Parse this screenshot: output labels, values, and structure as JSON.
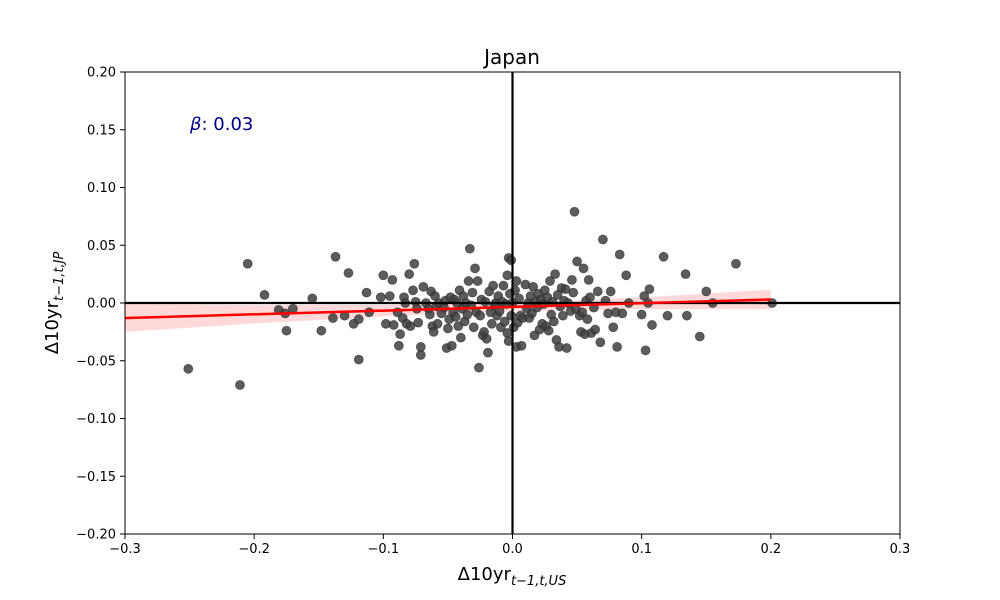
{
  "chart_data": {
    "type": "scatter",
    "title": "Japan",
    "xlabel": {
      "main": "Δ10yr",
      "sub": "t−1,t,US"
    },
    "ylabel": {
      "main": "Δ10yr",
      "sub": "t−1,t,JP"
    },
    "xlim": [
      -0.3,
      0.3
    ],
    "ylim": [
      -0.2,
      0.2
    ],
    "xticks": [
      -0.3,
      -0.2,
      -0.1,
      0.0,
      0.1,
      0.2,
      0.3
    ],
    "xtick_labels": [
      "−0.3",
      "−0.2",
      "−0.1",
      "0.0",
      "0.1",
      "0.2",
      "0.3"
    ],
    "yticks": [
      -0.2,
      -0.15,
      -0.1,
      -0.05,
      0.0,
      0.05,
      0.1,
      0.15,
      0.2
    ],
    "ytick_labels": [
      "−0.20",
      "−0.15",
      "−0.10",
      "−0.05",
      "0.00",
      "0.05",
      "0.10",
      "0.15",
      "0.20"
    ],
    "grid": false,
    "annotation": {
      "symbol": "β",
      "text": ": 0.03",
      "x": -0.25,
      "y": 0.155,
      "color": "#00008b"
    },
    "reference_lines": {
      "x": 0,
      "y": 0,
      "color": "#000000"
    },
    "regression": {
      "x": [
        -0.3,
        0.2
      ],
      "y": [
        -0.013,
        0.003
      ],
      "color": "#ff0000",
      "band_color": "#ffcccc",
      "band_half_width": [
        0.012,
        0.008,
        0.005,
        0.0035,
        0.005,
        0.0085
      ]
    },
    "points_color": "#404040",
    "points": [
      [
        -0.251,
        -0.057
      ],
      [
        -0.211,
        -0.071
      ],
      [
        -0.205,
        0.034
      ],
      [
        -0.192,
        0.007
      ],
      [
        -0.181,
        -0.006
      ],
      [
        -0.176,
        -0.009
      ],
      [
        -0.175,
        -0.024
      ],
      [
        -0.17,
        -0.005
      ],
      [
        -0.155,
        0.004
      ],
      [
        -0.148,
        -0.024
      ],
      [
        -0.139,
        -0.013
      ],
      [
        -0.137,
        0.04
      ],
      [
        -0.13,
        -0.011
      ],
      [
        -0.127,
        0.026
      ],
      [
        -0.123,
        -0.018
      ],
      [
        -0.119,
        -0.049
      ],
      [
        -0.119,
        -0.014
      ],
      [
        -0.113,
        0.009
      ],
      [
        -0.111,
        -0.008
      ],
      [
        -0.102,
        0.005
      ],
      [
        -0.1,
        0.024
      ],
      [
        -0.098,
        -0.018
      ],
      [
        -0.095,
        0.006
      ],
      [
        -0.093,
        0.02
      ],
      [
        -0.092,
        -0.019
      ],
      [
        -0.089,
        -0.008
      ],
      [
        -0.088,
        -0.037
      ],
      [
        -0.087,
        -0.027
      ],
      [
        -0.085,
        -0.013
      ],
      [
        -0.084,
        0.005
      ],
      [
        -0.083,
        0.0
      ],
      [
        -0.082,
        -0.018
      ],
      [
        -0.08,
        0.025
      ],
      [
        -0.079,
        -0.02
      ],
      [
        -0.077,
        0.011
      ],
      [
        -0.076,
        0.034
      ],
      [
        -0.075,
        0.001
      ],
      [
        -0.074,
        -0.005
      ],
      [
        -0.073,
        -0.017
      ],
      [
        -0.071,
        -0.045
      ],
      [
        -0.071,
        -0.038
      ],
      [
        -0.069,
        0.014
      ],
      [
        -0.067,
        0.0
      ],
      [
        -0.065,
        -0.005
      ],
      [
        -0.064,
        -0.01
      ],
      [
        -0.063,
        0.01
      ],
      [
        -0.062,
        -0.02
      ],
      [
        -0.061,
        -0.025
      ],
      [
        -0.06,
        0.006
      ],
      [
        -0.059,
        -0.003
      ],
      [
        -0.058,
        -0.018
      ],
      [
        -0.057,
        0.0
      ],
      [
        -0.055,
        -0.009
      ],
      [
        -0.053,
        -0.004
      ],
      [
        -0.052,
        0.002
      ],
      [
        -0.051,
        -0.039
      ],
      [
        -0.05,
        -0.022
      ],
      [
        -0.049,
        -0.014
      ],
      [
        -0.048,
        0.005
      ],
      [
        -0.047,
        -0.037
      ],
      [
        -0.046,
        -0.008
      ],
      [
        -0.045,
        0.003
      ],
      [
        -0.044,
        -0.012
      ],
      [
        -0.043,
        0.0
      ],
      [
        -0.042,
        -0.02
      ],
      [
        -0.041,
        0.011
      ],
      [
        -0.04,
        -0.03
      ],
      [
        -0.039,
        -0.005
      ],
      [
        -0.038,
        0.006
      ],
      [
        -0.037,
        -0.016
      ],
      [
        -0.036,
        0.0
      ],
      [
        -0.035,
        -0.01
      ],
      [
        -0.034,
        0.019
      ],
      [
        -0.033,
        0.047
      ],
      [
        -0.032,
        -0.002
      ],
      [
        -0.031,
        0.009
      ],
      [
        -0.03,
        -0.021
      ],
      [
        -0.029,
        0.03
      ],
      [
        -0.028,
        -0.008
      ],
      [
        -0.027,
        0.019
      ],
      [
        -0.026,
        -0.056
      ],
      [
        -0.025,
        -0.011
      ],
      [
        -0.024,
        0.003
      ],
      [
        -0.023,
        -0.028
      ],
      [
        -0.022,
        -0.025
      ],
      [
        -0.021,
        0.001
      ],
      [
        -0.02,
        -0.031
      ],
      [
        -0.019,
        -0.043
      ],
      [
        -0.018,
        0.01
      ],
      [
        -0.017,
        -0.008
      ],
      [
        -0.016,
        -0.018
      ],
      [
        -0.015,
        0.015
      ],
      [
        -0.014,
        -0.002
      ],
      [
        -0.013,
        0.0
      ],
      [
        -0.012,
        -0.011
      ],
      [
        -0.011,
        0.006
      ],
      [
        -0.01,
        -0.007
      ],
      [
        -0.009,
        -0.021
      ],
      [
        -0.008,
        0.001
      ],
      [
        -0.007,
        0.015
      ],
      [
        -0.006,
        -0.016
      ],
      [
        -0.005,
        -0.001
      ],
      [
        -0.004,
        0.024
      ],
      [
        -0.004,
        -0.026
      ],
      [
        -0.003,
        0.039
      ],
      [
        -0.003,
        -0.033
      ],
      [
        -0.002,
        0.008
      ],
      [
        -0.001,
        0.037
      ],
      [
        -0.001,
        -0.011
      ],
      [
        0.0,
        0.0
      ],
      [
        0.001,
        -0.021
      ],
      [
        0.002,
        0.011
      ],
      [
        0.003,
        -0.038
      ],
      [
        0.003,
        0.019
      ],
      [
        0.004,
        -0.017
      ],
      [
        0.005,
        0.004
      ],
      [
        0.006,
        -0.011
      ],
      [
        0.007,
        -0.037
      ],
      [
        0.008,
        -0.013
      ],
      [
        0.01,
        0.016
      ],
      [
        0.011,
        -0.005
      ],
      [
        0.012,
        0.0
      ],
      [
        0.013,
        -0.013
      ],
      [
        0.014,
        0.006
      ],
      [
        0.015,
        -0.009
      ],
      [
        0.016,
        0.014
      ],
      [
        0.017,
        -0.028
      ],
      [
        0.018,
        0.001
      ],
      [
        0.019,
        -0.004
      ],
      [
        0.02,
        0.008
      ],
      [
        0.021,
        -0.023
      ],
      [
        0.022,
        0.003
      ],
      [
        0.023,
        -0.018
      ],
      [
        0.024,
        -0.001
      ],
      [
        0.025,
        0.011
      ],
      [
        0.026,
        -0.02
      ],
      [
        0.027,
        0.005
      ],
      [
        0.028,
        -0.024
      ],
      [
        0.029,
        0.019
      ],
      [
        0.03,
        -0.01
      ],
      [
        0.031,
        0.001
      ],
      [
        0.032,
        -0.016
      ],
      [
        0.033,
        0.025
      ],
      [
        0.034,
        -0.032
      ],
      [
        0.035,
        0.007
      ],
      [
        0.036,
        -0.038
      ],
      [
        0.037,
        -0.003
      ],
      [
        0.038,
        0.013
      ],
      [
        0.039,
        -0.011
      ],
      [
        0.04,
        0.002
      ],
      [
        0.041,
        0.012
      ],
      [
        0.042,
        -0.039
      ],
      [
        0.043,
        0.0
      ],
      [
        0.045,
        -0.007
      ],
      [
        0.046,
        0.02
      ],
      [
        0.047,
        0.009
      ],
      [
        0.048,
        0.079
      ],
      [
        0.049,
        -0.005
      ],
      [
        0.05,
        0.036
      ],
      [
        0.052,
        -0.011
      ],
      [
        0.053,
        -0.025
      ],
      [
        0.054,
        -0.008
      ],
      [
        0.055,
        0.03
      ],
      [
        0.056,
        -0.027
      ],
      [
        0.057,
        0.002
      ],
      [
        0.058,
        -0.014
      ],
      [
        0.059,
        0.02
      ],
      [
        0.06,
        0.005
      ],
      [
        0.061,
        -0.026
      ],
      [
        0.063,
        -0.004
      ],
      [
        0.064,
        -0.023
      ],
      [
        0.066,
        0.01
      ],
      [
        0.068,
        -0.034
      ],
      [
        0.07,
        0.055
      ],
      [
        0.072,
        0.002
      ],
      [
        0.074,
        -0.009
      ],
      [
        0.076,
        0.01
      ],
      [
        0.078,
        -0.021
      ],
      [
        0.08,
        -0.008
      ],
      [
        0.081,
        -0.038
      ],
      [
        0.083,
        0.042
      ],
      [
        0.085,
        -0.009
      ],
      [
        0.088,
        0.024
      ],
      [
        0.09,
        0.0
      ],
      [
        0.1,
        -0.01
      ],
      [
        0.102,
        0.006
      ],
      [
        0.103,
        -0.041
      ],
      [
        0.105,
        0.0
      ],
      [
        0.106,
        0.012
      ],
      [
        0.108,
        -0.019
      ],
      [
        0.117,
        0.04
      ],
      [
        0.12,
        -0.011
      ],
      [
        0.134,
        0.025
      ],
      [
        0.135,
        -0.011
      ],
      [
        0.145,
        -0.029
      ],
      [
        0.15,
        0.01
      ],
      [
        0.155,
        0.0
      ],
      [
        0.173,
        0.034
      ],
      [
        0.201,
        0.0
      ]
    ]
  }
}
